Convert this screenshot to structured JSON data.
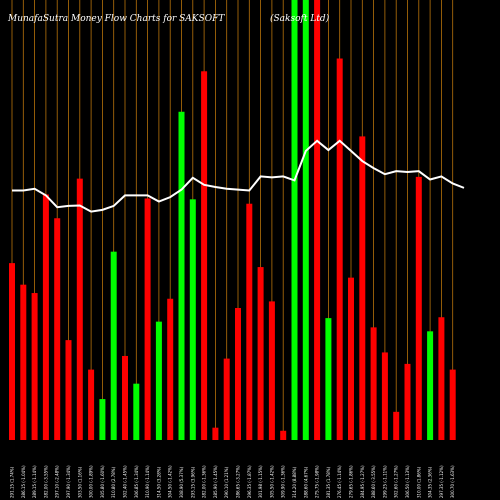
{
  "chart_data": {
    "type": "bar",
    "title": "MunafaSutra  Money Flow  Charts for SAKSOFT",
    "subtitle": "(Saksoft Ltd)",
    "colors": {
      "green": "#00ff00",
      "red": "#ff0000",
      "grid": "#b8730b",
      "line": "#ffffff",
      "background": "#000000"
    },
    "y_max": 100,
    "bars": [
      {
        "label": "291.15 (1.74%) ",
        "value": 40.2,
        "color": "red"
      },
      {
        "label": "286.15 (-1.04%) ",
        "value": 35.3,
        "color": "red"
      },
      {
        "label": "289.15 (-1.14%) ",
        "value": 33.4,
        "color": "red"
      },
      {
        "label": "282.00 (-3.55%) ",
        "value": 55.8,
        "color": "red"
      },
      {
        "label": "297.10 (-2.48%) ",
        "value": 50.4,
        "color": "red"
      },
      {
        "label": "297.90 (-1.34%) ",
        "value": 22.7,
        "color": "red"
      },
      {
        "label": "303.50 (1.16%) ",
        "value": 59.4,
        "color": "red"
      },
      {
        "label": "300.00 (-1.89%) ",
        "value": 16.0,
        "color": "red"
      },
      {
        "label": "305.80 (-1.60%) ",
        "value": 9.3,
        "color": "green"
      },
      {
        "label": "310.80 (2.78%) ",
        "value": 42.8,
        "color": "green"
      },
      {
        "label": "302.40 (-1.45%) ",
        "value": 19.1,
        "color": "red"
      },
      {
        "label": "306.85 (-1.34%) ",
        "value": 12.8,
        "color": "green"
      },
      {
        "label": "310.90 (-1.14%) ",
        "value": 54.9,
        "color": "red"
      },
      {
        "label": "314.50 (3.28%) ",
        "value": 26.9,
        "color": "green"
      },
      {
        "label": "304.50 (-1.42%) ",
        "value": 32.1,
        "color": "red"
      },
      {
        "label": "308.90 (5.37%) ",
        "value": 74.6,
        "color": "green"
      },
      {
        "label": "293.15 (3.96%) ",
        "value": 54.7,
        "color": "green"
      },
      {
        "label": "282.00 (-1.36%) ",
        "value": 83.8,
        "color": "red"
      },
      {
        "label": "285.90 (-1.45%) ",
        "value": 2.8,
        "color": "red"
      },
      {
        "label": "290.10 (1.21%) ",
        "value": 18.5,
        "color": "red"
      },
      {
        "label": "286.65 (-3.27%) ",
        "value": 30.0,
        "color": "red"
      },
      {
        "label": "296.35 (-1.87%) ",
        "value": 53.7,
        "color": "red"
      },
      {
        "label": "301.98 (-1.15%) ",
        "value": 39.3,
        "color": "red"
      },
      {
        "label": "305.50 (-1.42%) ",
        "value": 31.5,
        "color": "red"
      },
      {
        "label": "309.90 (-1.36%) ",
        "value": 2.1,
        "color": "red"
      },
      {
        "label": "314.20 (8.88%) ",
        "value": 100,
        "color": "green"
      },
      {
        "label": "288.60 (4.67%) ",
        "value": 100,
        "color": "green"
      },
      {
        "label": "275.75 (-1.98%) ",
        "value": 100,
        "color": "red"
      },
      {
        "label": "281.35 (1.78%) ",
        "value": 27.7,
        "color": "green"
      },
      {
        "label": "276.45 (-1.14%) ",
        "value": 86.7,
        "color": "red"
      },
      {
        "label": "279.65 (-1.86%) ",
        "value": 36.9,
        "color": "red"
      },
      {
        "label": "284.95 (-1.27%) ",
        "value": 69.0,
        "color": "red"
      },
      {
        "label": "288.60 (-3.55%) ",
        "value": 25.6,
        "color": "red"
      },
      {
        "label": "299.25 (-1.11%) ",
        "value": 19.9,
        "color": "red"
      },
      {
        "label": "302.60 (-1.27%) ",
        "value": 6.4,
        "color": "red"
      },
      {
        "label": "306.50 (-1.13%) ",
        "value": 17.3,
        "color": "red"
      },
      {
        "label": "310.00 (1.86%) ",
        "value": 59.8,
        "color": "red"
      },
      {
        "label": "304.35 (2.36%) ",
        "value": 24.7,
        "color": "green"
      },
      {
        "label": "297.35 (-1.12%) ",
        "value": 27.9,
        "color": "red"
      },
      {
        "label": "300.70 (-1.63%) ",
        "value": 16.0,
        "color": "red"
      }
    ],
    "line": [
      {
        "index": 0,
        "value": 56.7
      },
      {
        "index": 1,
        "value": 56.7
      },
      {
        "index": 2,
        "value": 57.1
      },
      {
        "index": 3,
        "value": 55.6
      },
      {
        "index": 4,
        "value": 52.9
      },
      {
        "index": 5,
        "value": 53.2
      },
      {
        "index": 6,
        "value": 53.3
      },
      {
        "index": 7,
        "value": 51.9
      },
      {
        "index": 8,
        "value": 52.3
      },
      {
        "index": 9,
        "value": 53.2
      },
      {
        "index": 10,
        "value": 55.6
      },
      {
        "index": 11,
        "value": 55.6
      },
      {
        "index": 12,
        "value": 55.6
      },
      {
        "index": 13,
        "value": 54.2
      },
      {
        "index": 14,
        "value": 55.2
      },
      {
        "index": 15,
        "value": 56.9
      },
      {
        "index": 16,
        "value": 59.6
      },
      {
        "index": 17,
        "value": 58.0
      },
      {
        "index": 18,
        "value": 57.5
      },
      {
        "index": 19,
        "value": 57.1
      },
      {
        "index": 20,
        "value": 56.9
      },
      {
        "index": 21,
        "value": 56.7
      },
      {
        "index": 22,
        "value": 59.9
      },
      {
        "index": 23,
        "value": 59.7
      },
      {
        "index": 24,
        "value": 59.9
      },
      {
        "index": 25,
        "value": 59.0
      },
      {
        "index": 26,
        "value": 65.7
      },
      {
        "index": 27,
        "value": 68.0
      },
      {
        "index": 28,
        "value": 65.9
      },
      {
        "index": 29,
        "value": 68.0
      },
      {
        "index": 30,
        "value": 65.7
      },
      {
        "index": 31,
        "value": 63.4
      },
      {
        "index": 32,
        "value": 61.8
      },
      {
        "index": 33,
        "value": 60.4
      },
      {
        "index": 34,
        "value": 61.1
      },
      {
        "index": 35,
        "value": 60.9
      },
      {
        "index": 36,
        "value": 61.1
      },
      {
        "index": 37,
        "value": 59.2
      },
      {
        "index": 38,
        "value": 59.9
      },
      {
        "index": 39,
        "value": 58.3
      },
      {
        "index": 40,
        "value": 57.3
      }
    ]
  }
}
